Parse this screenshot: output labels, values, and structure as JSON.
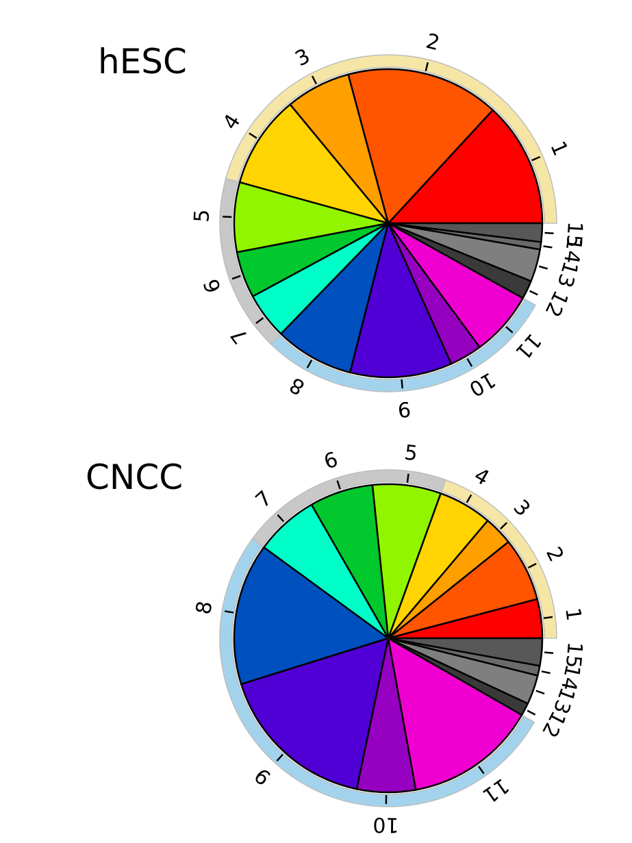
{
  "chart_data": [
    {
      "type": "pie",
      "title": "hESC",
      "categories": [
        "1",
        "2",
        "3",
        "4",
        "5",
        "6",
        "7",
        "8",
        "9",
        "10",
        "11",
        "12",
        "13",
        "14",
        "15"
      ],
      "values": [
        13.5,
        16.5,
        7.0,
        10.0,
        7.5,
        5.0,
        5.0,
        8.5,
        11.0,
        3.5,
        7.0,
        2.0,
        3.5,
        0.8,
        2.0
      ],
      "colors": [
        "#ff0000",
        "#ff5500",
        "#ff9f00",
        "#ffd400",
        "#92f500",
        "#00c82d",
        "#00ffc8",
        "#0050c0",
        "#5000d4",
        "#9600c0",
        "#f000d0",
        "#3a3a3a",
        "#7f7f7f",
        "#6a6a6a",
        "#585858"
      ],
      "groups": [
        {
          "members": [
            1,
            4
          ],
          "color": "#f5e6a6"
        },
        {
          "members": [
            5,
            7
          ],
          "color": "#c8c8c8"
        },
        {
          "members": [
            8,
            11
          ],
          "color": "#a3d3ec"
        }
      ]
    },
    {
      "type": "pie",
      "title": "CNCC",
      "categories": [
        "1",
        "2",
        "3",
        "4",
        "5",
        "6",
        "7",
        "8",
        "9",
        "10",
        "11",
        "12",
        "13",
        "14",
        "15"
      ],
      "values": [
        4.0,
        6.5,
        3.0,
        5.5,
        7.0,
        6.5,
        6.5,
        14.5,
        16.5,
        6.0,
        13.5,
        1.3,
        3.0,
        1.0,
        2.8
      ],
      "colors": [
        "#ff0000",
        "#ff5500",
        "#ff9f00",
        "#ffd400",
        "#92f500",
        "#00c82d",
        "#00ffc8",
        "#0050c0",
        "#5000d4",
        "#9600c0",
        "#f000d0",
        "#3a3a3a",
        "#7f7f7f",
        "#6a6a6a",
        "#585858"
      ],
      "groups": [
        {
          "members": [
            1,
            4
          ],
          "color": "#f5e6a6"
        },
        {
          "members": [
            5,
            7
          ],
          "color": "#c8c8c8"
        },
        {
          "members": [
            8,
            11
          ],
          "color": "#a3d3ec"
        }
      ]
    }
  ]
}
